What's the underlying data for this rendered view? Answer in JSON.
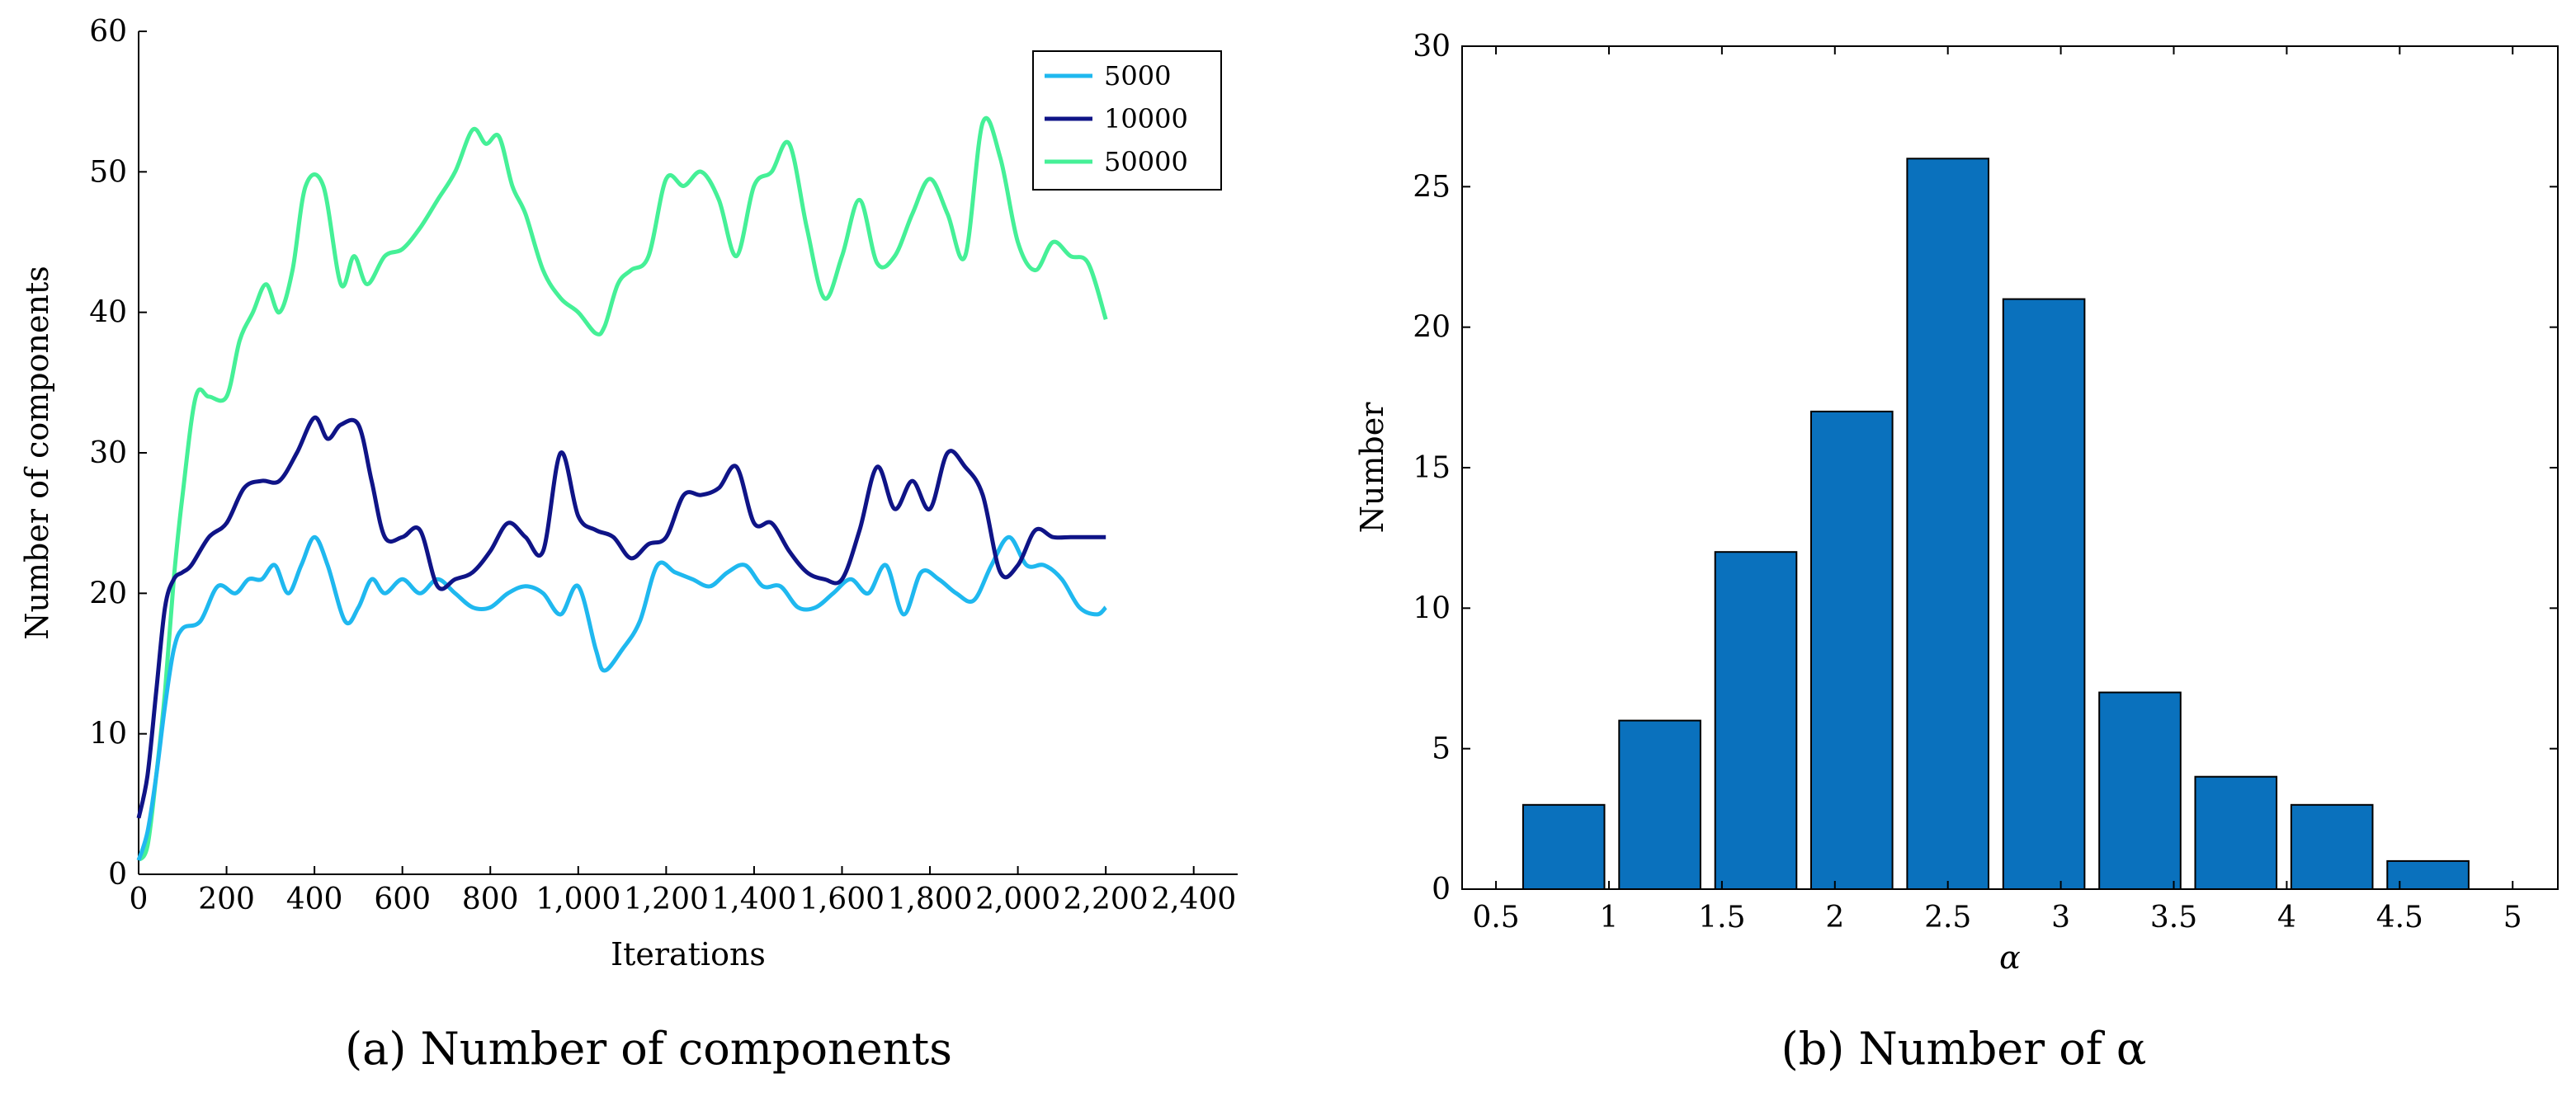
{
  "figure": {
    "caption_a": "(a)  Number of components",
    "caption_b": "(b)  Number of α"
  },
  "chart_data": [
    {
      "type": "line",
      "title": "",
      "xlabel": "Iterations",
      "ylabel": "Number of components",
      "xlim": [
        0,
        2500
      ],
      "ylim": [
        0,
        60
      ],
      "xticks": [
        0,
        200,
        400,
        600,
        800,
        1000,
        1200,
        1400,
        1600,
        1800,
        2000,
        2200,
        2400
      ],
      "xtick_labels": [
        "0",
        "200",
        "400",
        "600",
        "800",
        "1,000",
        "1,200",
        "1,400",
        "1,600",
        "1,800",
        "2,000",
        "2,200",
        "2,400"
      ],
      "yticks": [
        0,
        10,
        20,
        30,
        40,
        50,
        60
      ],
      "grid": false,
      "legend_position": "top-right",
      "series": [
        {
          "name": "5000",
          "color": "#1fb8ef",
          "x": [
            0,
            20,
            40,
            60,
            80,
            100,
            140,
            180,
            220,
            250,
            280,
            310,
            340,
            370,
            400,
            430,
            470,
            500,
            530,
            560,
            600,
            640,
            680,
            720,
            760,
            800,
            840,
            880,
            920,
            960,
            1000,
            1040,
            1060,
            1100,
            1140,
            1180,
            1220,
            1260,
            1300,
            1340,
            1380,
            1420,
            1460,
            1500,
            1540,
            1580,
            1620,
            1660,
            1700,
            1740,
            1780,
            1820,
            1860,
            1900,
            1940,
            1980,
            2020,
            2060,
            2100,
            2140,
            2180,
            2200
          ],
          "y": [
            1,
            3,
            7,
            12,
            16,
            17.5,
            18,
            20.5,
            20,
            21,
            21,
            22,
            20,
            22,
            24,
            22,
            18,
            19,
            21,
            20,
            21,
            20,
            21,
            20,
            19,
            19,
            20,
            20.5,
            20,
            18.5,
            20.5,
            16,
            14.5,
            16,
            18,
            22,
            21.5,
            21,
            20.5,
            21.5,
            22,
            20.5,
            20.5,
            19,
            19,
            20,
            21,
            20,
            22,
            18.5,
            21.5,
            21,
            20,
            19.5,
            22,
            24,
            22,
            22,
            21,
            19,
            18.5,
            19
          ]
        },
        {
          "name": "10000",
          "color": "#0f1487",
          "x": [
            0,
            20,
            40,
            60,
            80,
            100,
            120,
            160,
            200,
            240,
            280,
            320,
            360,
            400,
            430,
            460,
            500,
            530,
            560,
            600,
            640,
            680,
            720,
            760,
            800,
            840,
            880,
            920,
            960,
            1000,
            1040,
            1080,
            1120,
            1160,
            1200,
            1240,
            1280,
            1320,
            1360,
            1400,
            1440,
            1480,
            1520,
            1560,
            1600,
            1640,
            1680,
            1720,
            1760,
            1800,
            1840,
            1880,
            1920,
            1960,
            2000,
            2040,
            2080,
            2120,
            2160,
            2200
          ],
          "y": [
            4,
            7,
            13,
            19,
            21,
            21.5,
            22,
            24,
            25,
            27.5,
            28,
            28,
            30,
            32.5,
            31,
            32,
            32,
            28,
            24,
            24,
            24.5,
            20.5,
            21,
            21.5,
            23,
            25,
            24,
            23,
            30,
            25.5,
            24.5,
            24,
            22.5,
            23.5,
            24,
            27,
            27,
            27.5,
            29,
            25,
            25,
            23,
            21.5,
            21,
            21,
            24.5,
            29,
            26,
            28,
            26,
            30,
            29,
            27,
            21.5,
            22,
            24.5,
            24,
            24,
            24,
            24
          ]
        },
        {
          "name": "50000",
          "color": "#45f097",
          "x": [
            0,
            20,
            40,
            60,
            80,
            100,
            130,
            160,
            200,
            230,
            260,
            290,
            320,
            350,
            380,
            420,
            460,
            490,
            520,
            560,
            600,
            640,
            680,
            720,
            760,
            790,
            820,
            850,
            880,
            920,
            960,
            1000,
            1040,
            1060,
            1090,
            1120,
            1160,
            1200,
            1240,
            1280,
            1320,
            1360,
            1400,
            1440,
            1480,
            1520,
            1560,
            1600,
            1640,
            1680,
            1720,
            1760,
            1800,
            1840,
            1880,
            1920,
            1960,
            2000,
            2040,
            2080,
            2120,
            2160,
            2200
          ],
          "y": [
            1,
            2,
            7,
            13,
            21,
            27,
            34,
            34,
            34,
            38,
            40,
            42,
            40,
            43,
            49,
            49,
            42,
            44,
            42,
            44,
            44.5,
            46,
            48,
            50,
            53,
            52,
            52.5,
            49,
            47,
            43,
            41,
            40,
            38.5,
            39,
            42,
            43,
            44,
            49.5,
            49,
            50,
            48,
            44,
            49,
            50,
            52,
            46,
            41,
            44,
            48,
            43.5,
            44,
            47,
            49.5,
            47,
            44,
            53.5,
            51,
            45,
            43,
            45,
            44,
            43.5,
            39.5
          ]
        }
      ]
    },
    {
      "type": "bar",
      "title": "",
      "xlabel": "α",
      "ylabel": "Number",
      "xlim": [
        0.35,
        5.2
      ],
      "ylim": [
        0,
        30
      ],
      "xticks": [
        0.5,
        1,
        1.5,
        2,
        2.5,
        3,
        3.5,
        4,
        4.5,
        5
      ],
      "xtick_labels": [
        "0.5",
        "1",
        "1.5",
        "2",
        "2.5",
        "3",
        "3.5",
        "4",
        "4.5",
        "5"
      ],
      "yticks": [
        0,
        5,
        10,
        15,
        20,
        25,
        30
      ],
      "grid": false,
      "bar_color": "#0a71bd",
      "x": [
        0.8,
        1.225,
        1.65,
        2.075,
        2.5,
        2.925,
        3.35,
        3.775,
        4.2,
        4.625
      ],
      "values": [
        3,
        6,
        12,
        17,
        26,
        21,
        7,
        4,
        3,
        1
      ]
    }
  ]
}
